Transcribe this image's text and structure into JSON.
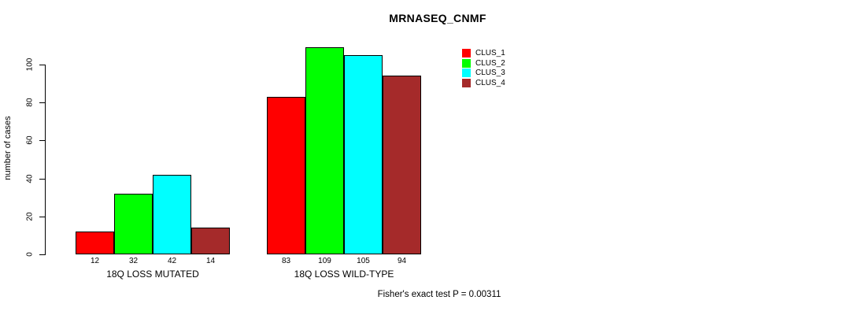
{
  "chart_data": {
    "type": "bar",
    "title": "MRNASEQ_CNMF",
    "ylabel": "number of cases",
    "xlabel": "",
    "ylim": [
      0,
      110
    ],
    "yticks": [
      0,
      20,
      40,
      60,
      80,
      100
    ],
    "grid": false,
    "legend_position": "top-right",
    "categories": [
      "18Q LOSS MUTATED",
      "18Q LOSS WILD-TYPE"
    ],
    "series": [
      {
        "name": "CLUS_1",
        "color": "#ff0000",
        "values": [
          12,
          83
        ]
      },
      {
        "name": "CLUS_2",
        "color": "#00ff00",
        "values": [
          32,
          109
        ]
      },
      {
        "name": "CLUS_3",
        "color": "#00ffff",
        "values": [
          42,
          105
        ]
      },
      {
        "name": "CLUS_4",
        "color": "#a52a2a",
        "values": [
          14,
          94
        ]
      }
    ],
    "bar_value_labels": [
      [
        "12",
        "32",
        "42",
        "14"
      ],
      [
        "83",
        "109",
        "105",
        "94"
      ]
    ],
    "footnote": "Fisher's exact test P = 0.00311"
  }
}
